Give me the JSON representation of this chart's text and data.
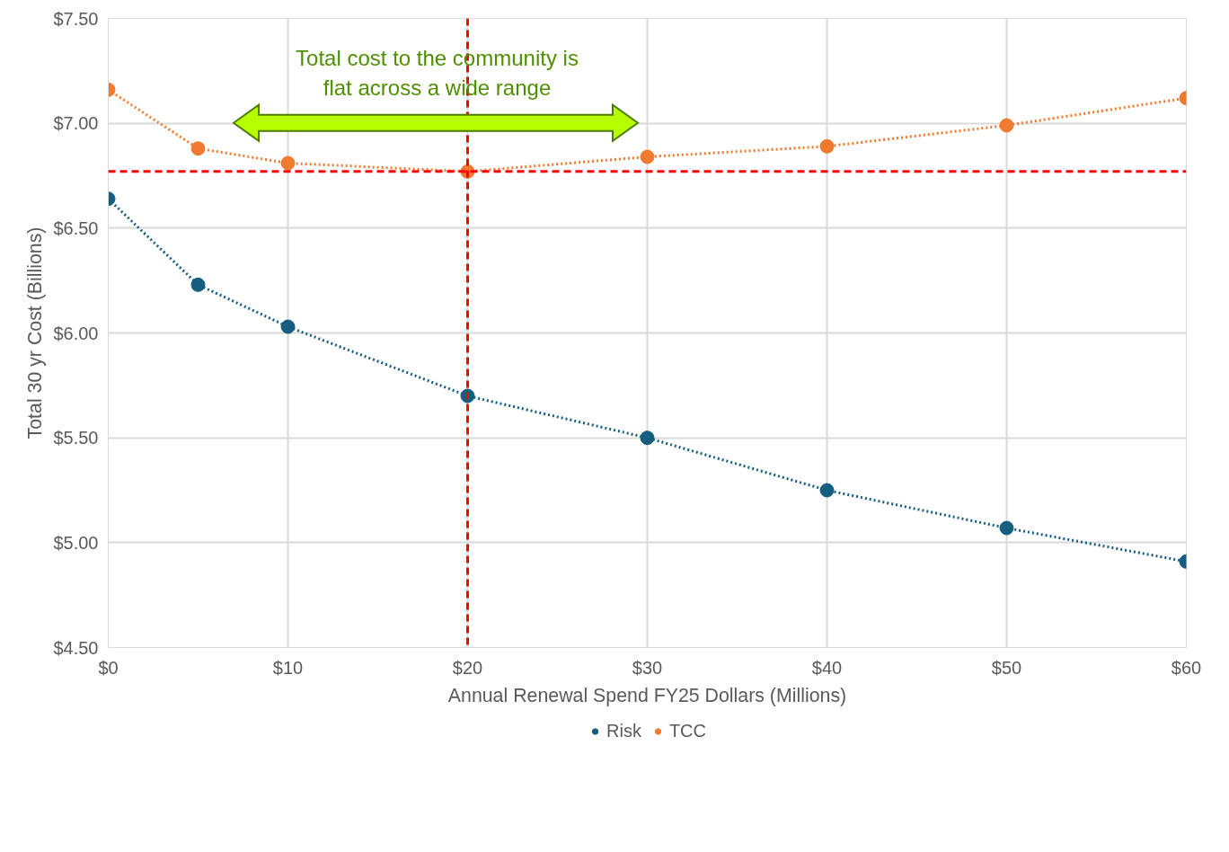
{
  "chart_data": {
    "type": "line",
    "x": [
      0,
      5,
      10,
      20,
      30,
      40,
      50,
      60
    ],
    "xlabel": "Annual Renewal Spend FY25 Dollars (Millions)",
    "ylabel": "Total 30 yr Cost (Billions)",
    "xlim": [
      0,
      60
    ],
    "xticks": [
      {
        "value": 0,
        "label": "$0"
      },
      {
        "value": 10,
        "label": "$10"
      },
      {
        "value": 20,
        "label": "$20"
      },
      {
        "value": 30,
        "label": "$30"
      },
      {
        "value": 40,
        "label": "$40"
      },
      {
        "value": 50,
        "label": "$50"
      },
      {
        "value": 60,
        "label": "$60"
      }
    ],
    "ylim": [
      4.5,
      7.5
    ],
    "yticks": [
      {
        "value": 4.5,
        "label": "$4.50"
      },
      {
        "value": 5.0,
        "label": "$5.00"
      },
      {
        "value": 5.5,
        "label": "$5.50"
      },
      {
        "value": 6.0,
        "label": "$6.00"
      },
      {
        "value": 6.5,
        "label": "$6.50"
      },
      {
        "value": 7.0,
        "label": "$7.00"
      },
      {
        "value": 7.5,
        "label": "$7.50"
      }
    ],
    "series": [
      {
        "name": "Risk",
        "color": "#165e80",
        "values": [
          6.64,
          6.23,
          6.03,
          5.7,
          5.5,
          5.25,
          5.07,
          4.91
        ]
      },
      {
        "name": "TCC",
        "color": "#f07a2f",
        "values": [
          7.16,
          6.88,
          6.81,
          6.77,
          6.84,
          6.89,
          6.99,
          7.12
        ]
      }
    ],
    "marker": "circle",
    "line_style": "dotted",
    "grid": true,
    "legend": "bottom",
    "ref_lines": [
      {
        "axis": "y",
        "value": 6.77,
        "color": "#ff0000",
        "line_style": "dashed"
      },
      {
        "axis": "x",
        "value": 20,
        "color": "#ff0000",
        "line_style": "dashed"
      }
    ],
    "annotations": [
      "Total cost to the community is\nflat across a wide range"
    ]
  }
}
